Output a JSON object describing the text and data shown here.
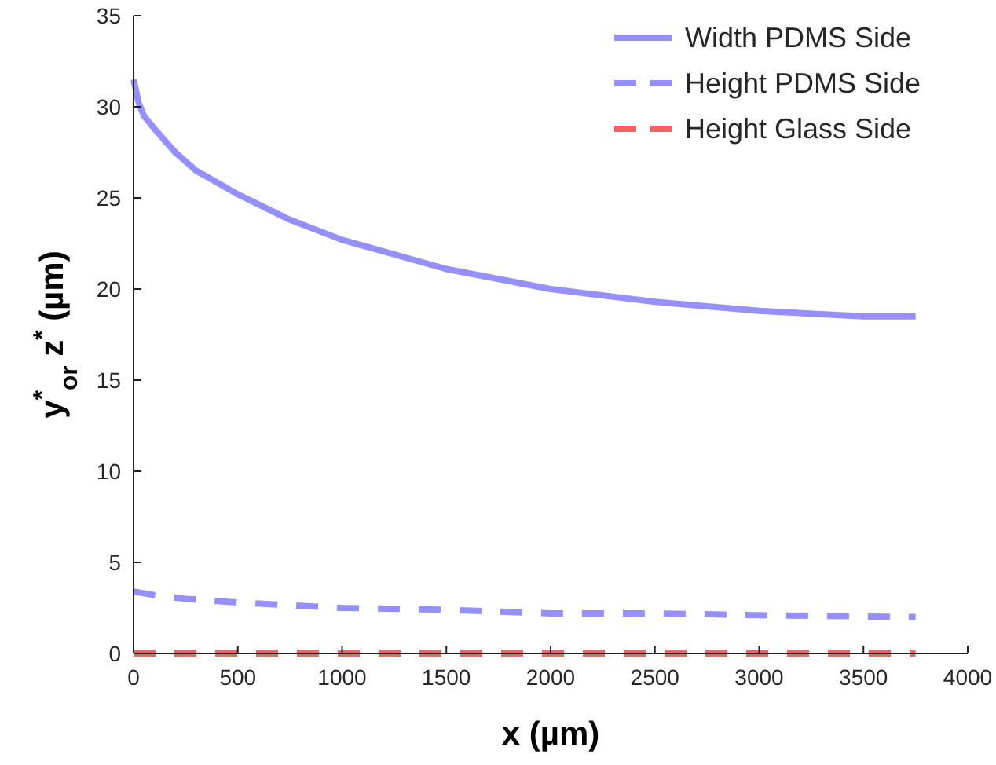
{
  "chart_data": {
    "type": "line",
    "xlabel": "x (µm)",
    "ylabel": "y$^{*}$$_{or}$ z$^{*}$ (µm)",
    "xlim": [
      0,
      4000
    ],
    "xticks": [
      0,
      500,
      1000,
      1500,
      2000,
      2500,
      3000,
      3500,
      4000
    ],
    "ylim": [
      0,
      35
    ],
    "yticks": [
      0,
      5,
      10,
      15,
      20,
      25,
      30,
      35
    ],
    "grid": false,
    "legend": "top right",
    "marker": "none",
    "series": [
      {
        "name": "Width PDMS Side",
        "color": "#9690ff",
        "line_style": "solid",
        "x": [
          0,
          25,
          50,
          100,
          200,
          300,
          500,
          750,
          1000,
          1500,
          2000,
          2500,
          3000,
          3500,
          3750
        ],
        "values": [
          31.5,
          30.2,
          29.5,
          28.8,
          27.5,
          26.5,
          25.2,
          23.8,
          22.7,
          21.1,
          20.0,
          19.3,
          18.8,
          18.5,
          18.5
        ]
      },
      {
        "name": "Height PDMS Side",
        "color": "#9690ff",
        "line_style": "dashed",
        "x": [
          0,
          100,
          250,
          500,
          1000,
          1500,
          2000,
          2500,
          3000,
          3750
        ],
        "values": [
          3.4,
          3.2,
          3.0,
          2.8,
          2.5,
          2.4,
          2.2,
          2.2,
          2.1,
          2.0
        ]
      },
      {
        "name": "Height Glass Side",
        "color": "#f06464",
        "line_style": "dashed",
        "x": [
          0,
          3750
        ],
        "values": [
          0,
          0
        ]
      }
    ]
  }
}
